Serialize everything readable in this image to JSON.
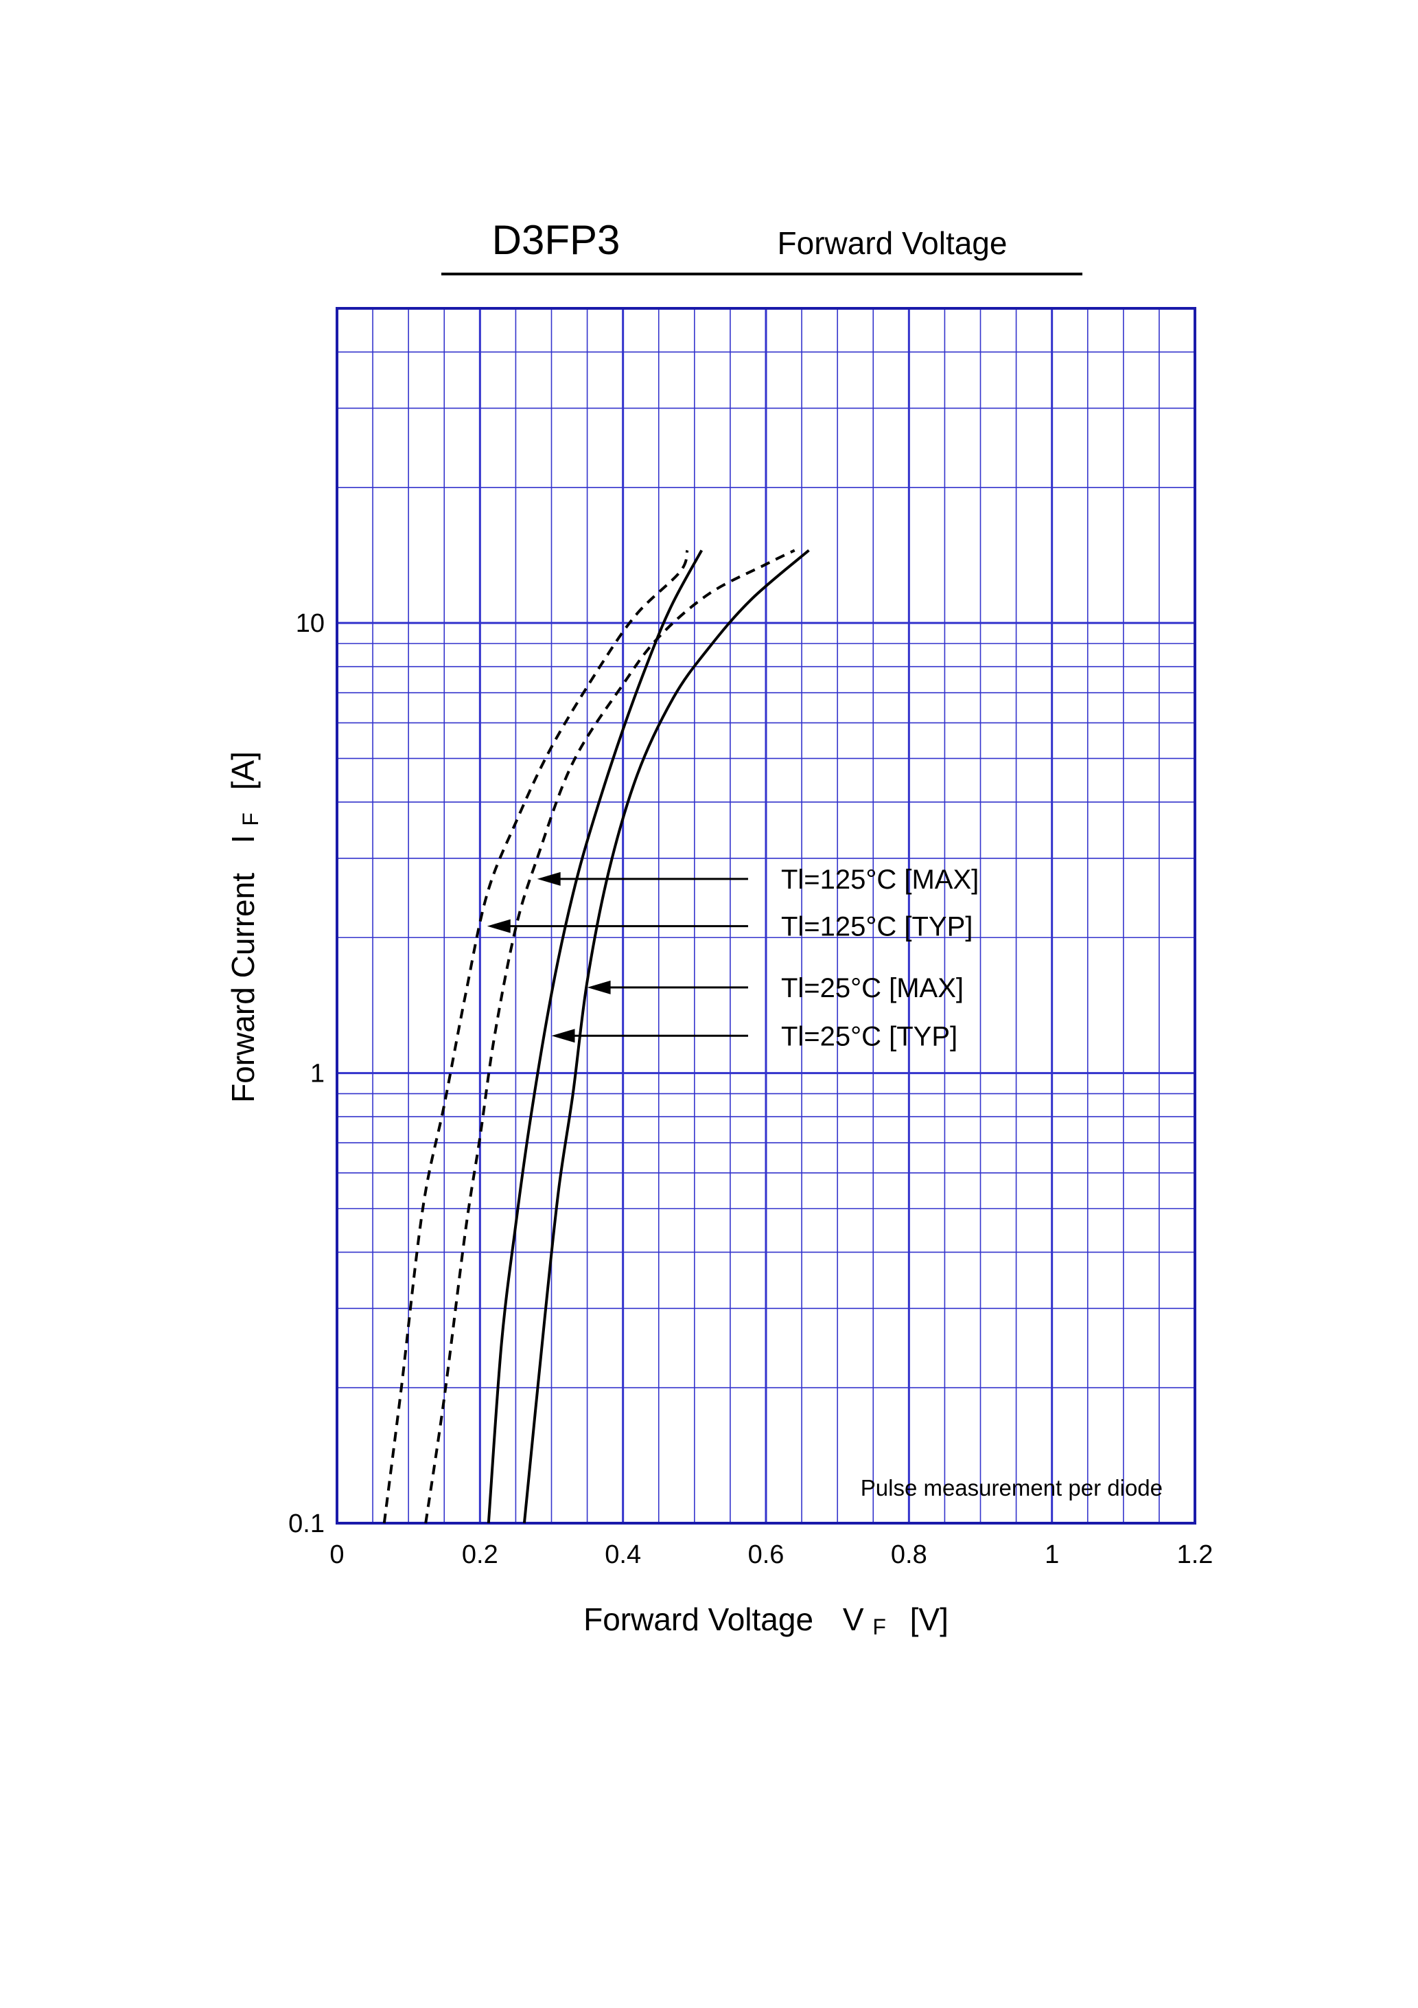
{
  "chart_data": {
    "type": "line",
    "title": "D3FP3",
    "subtitle": "Forward Voltage",
    "xlabel": "Forward Voltage",
    "xlabel_symbol": "V",
    "xlabel_subscript": "F",
    "xlabel_unit": "[V]",
    "ylabel": "Forward Current",
    "ylabel_symbol": "I",
    "ylabel_subscript": "F",
    "ylabel_unit": "[A]",
    "xlim": [
      0,
      1.2
    ],
    "ylim": [
      0.1,
      50
    ],
    "yscale": "log",
    "grid": true,
    "grid_color": "#3333cc",
    "frame_color": "#1a1aaa",
    "x_ticks": [
      "0",
      "0.2",
      "0.4",
      "0.6",
      "0.8",
      "1",
      "1.2"
    ],
    "y_ticks": [
      "0.1",
      "1",
      "10"
    ],
    "annotation": "Pulse measurement per diode",
    "series": [
      {
        "name": "Tl=125°C [MAX]",
        "style": "dashed",
        "points": [
          [
            0.124,
            0.1
          ],
          [
            0.15,
            0.19
          ],
          [
            0.18,
            0.45
          ],
          [
            0.2,
            0.72
          ],
          [
            0.22,
            1.2
          ],
          [
            0.25,
            2.1
          ],
          [
            0.28,
            3.0
          ],
          [
            0.33,
            4.9
          ],
          [
            0.4,
            7.3
          ],
          [
            0.45,
            9.3
          ],
          [
            0.52,
            11.6
          ],
          [
            0.6,
            13.5
          ],
          [
            0.64,
            14.5
          ]
        ]
      },
      {
        "name": "Tl=125°C [TYP]",
        "style": "dashed",
        "points": [
          [
            0.066,
            0.1
          ],
          [
            0.09,
            0.2
          ],
          [
            0.12,
            0.5
          ],
          [
            0.15,
            0.85
          ],
          [
            0.18,
            1.5
          ],
          [
            0.21,
            2.5
          ],
          [
            0.25,
            3.6
          ],
          [
            0.3,
            5.3
          ],
          [
            0.37,
            8.1
          ],
          [
            0.42,
            10.5
          ],
          [
            0.48,
            13.0
          ],
          [
            0.49,
            14.5
          ]
        ]
      },
      {
        "name": "Tl=25°C [MAX]",
        "style": "solid",
        "points": [
          [
            0.262,
            0.1
          ],
          [
            0.29,
            0.28
          ],
          [
            0.31,
            0.55
          ],
          [
            0.33,
            0.9
          ],
          [
            0.35,
            1.6
          ],
          [
            0.38,
            2.8
          ],
          [
            0.42,
            4.6
          ],
          [
            0.47,
            6.8
          ],
          [
            0.52,
            8.8
          ],
          [
            0.58,
            11.3
          ],
          [
            0.66,
            14.5
          ]
        ]
      },
      {
        "name": "Tl=25°C [TYP]",
        "style": "solid",
        "points": [
          [
            0.212,
            0.1
          ],
          [
            0.23,
            0.25
          ],
          [
            0.25,
            0.46
          ],
          [
            0.27,
            0.78
          ],
          [
            0.3,
            1.5
          ],
          [
            0.33,
            2.5
          ],
          [
            0.36,
            3.7
          ],
          [
            0.4,
            5.8
          ],
          [
            0.44,
            8.6
          ],
          [
            0.47,
            11.1
          ],
          [
            0.51,
            14.5
          ]
        ]
      }
    ],
    "arrows": [
      {
        "series": "Tl=125°C [MAX]",
        "tip": [
          0.28,
          2.7
        ],
        "tail_x": 0.575
      },
      {
        "series": "Tl=125°C [TYP]",
        "tip": [
          0.21,
          2.12
        ],
        "tail_x": 0.575
      },
      {
        "series": "Tl=25°C [MAX]",
        "tip": [
          0.35,
          1.55
        ],
        "tail_x": 0.575
      },
      {
        "series": "Tl=25°C [TYP]",
        "tip": [
          0.3,
          1.21
        ],
        "tail_x": 0.575
      }
    ]
  }
}
